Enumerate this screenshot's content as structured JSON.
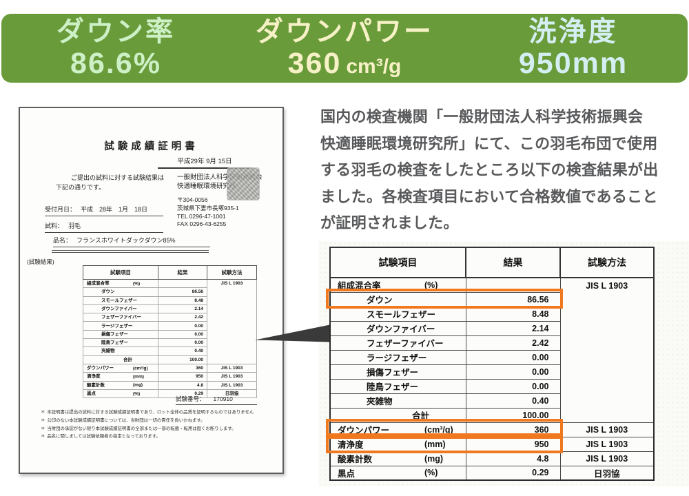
{
  "banner": {
    "bg_color": "#6a9b3a",
    "stats": [
      {
        "label": "ダウン率",
        "value": "86.6%",
        "unit": "",
        "color": "#cdf0c6"
      },
      {
        "label": "ダウンパワー",
        "value": "360",
        "unit": "cm³/g",
        "color": "#f6f1c6"
      },
      {
        "label": "洗浄度",
        "value": "950mm",
        "unit": "",
        "color": "#d4eef2"
      }
    ]
  },
  "description": {
    "text": "国内の検査機関「一般財団法人科学技術振興会\n快適睡眠環境研究所」にて、この羽毛布団で使用\nする羽毛の検査をしたところ以下の検査結果が出\nました。各検査項目において合格数値であること\nが証明されました。"
  },
  "certificate": {
    "title": "試験成績証明書",
    "date": "平成29年 9月 15日",
    "intro_line1": "ご提出の試料に対する試験結果は",
    "intro_line2": "下記の通りです。",
    "org_line1": "一般財団法人科学技術振興会",
    "org_line2": "快適睡眠環境研究所",
    "postal": "〒304-0056",
    "address": "茨城県下妻市長塚935-1",
    "tel": "TEL 0296-47-1001",
    "fax": "FAX 0296-43-6255",
    "reception_label": "受付月日：",
    "reception_value": "平成　28年　1月　18日",
    "sample_label": "試料：",
    "sample_value": "羽毛",
    "product_label": "品名：",
    "product_value": "フランスホワイトダックダウン85%",
    "results_label": "(試験結果)",
    "test_no_label": "試験番号：",
    "test_no_value": "170910",
    "note_bullet": "＊",
    "notes": [
      "本証明書は提出の試料に対する試験成績証明書であり、ロット全体の品質を証明するものではありません",
      "公印のない本試験成績証明書については、当財団は一切の責任を負いかねます。",
      "当財団の承認がない限り本試験成績証明書の全部または一部の転載・転用は固くお断りします。",
      "品名に関しましては試験依頼者の指定となっております。"
    ]
  },
  "table": {
    "headers": [
      "試験項目",
      "結果",
      "試験方法"
    ],
    "highlight_color": "#f0781e",
    "rows": [
      {
        "item": "組成混合率",
        "unit": "(%)",
        "result": "",
        "method": "JIS L 1903",
        "mspan": 10
      },
      {
        "item": "ダウン",
        "indent": true,
        "result": "86.56",
        "highlight": true
      },
      {
        "item": "スモールフェザー",
        "indent": true,
        "result": "8.48"
      },
      {
        "item": "ダウンファイバー",
        "indent": true,
        "result": "2.14"
      },
      {
        "item": "フェザーファイバー",
        "indent": true,
        "result": "2.42"
      },
      {
        "item": "ラージフェザー",
        "indent": true,
        "result": "0.00"
      },
      {
        "item": "損傷フェザー",
        "indent": true,
        "result": "0.00"
      },
      {
        "item": "陸鳥フェザー",
        "indent": true,
        "result": "0.00"
      },
      {
        "item": "夾雑物",
        "indent": true,
        "result": "0.40"
      },
      {
        "item": "合計",
        "sum": true,
        "result": "100.00"
      },
      {
        "item": "ダウンパワー",
        "unit": "(cm³/g)",
        "result": "360",
        "method": "JIS L 1903",
        "highlight": true
      },
      {
        "item": "清浄度",
        "unit": "(mm)",
        "result": "950",
        "method": "JIS L 1903",
        "highlight": true
      },
      {
        "item": "酸素計数",
        "unit": "(mg)",
        "result": "4.8",
        "method": "JIS L 1903"
      },
      {
        "item": "黒点",
        "unit": "(%)",
        "result": "0.29",
        "method": "日羽協"
      }
    ]
  }
}
